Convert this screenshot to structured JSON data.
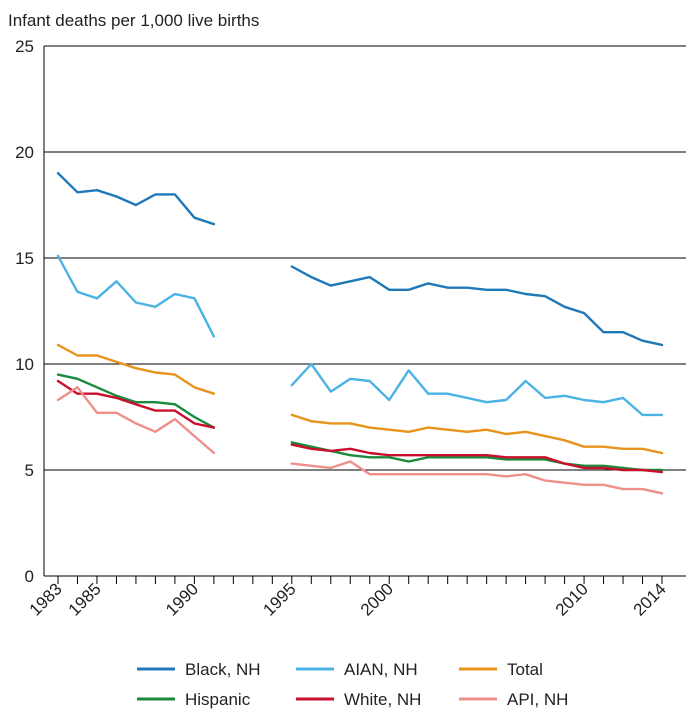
{
  "chart_data": {
    "type": "line",
    "title": "",
    "ylabel": "Infant deaths per 1,000 live births",
    "xlabel": "",
    "ylim": [
      0,
      25
    ],
    "y_ticks": [
      0,
      5,
      10,
      15,
      20,
      25
    ],
    "x_tick_labels": [
      "1983",
      "1985",
      "1990",
      "1995",
      "2000",
      "2010",
      "2014"
    ],
    "x_ticks": [
      1983,
      1985,
      1990,
      1995,
      2000,
      2010,
      2014
    ],
    "xlim": [
      1983,
      2014
    ],
    "grid": "horizontal",
    "legend_position": "bottom",
    "series": [
      {
        "name": "Black, NH",
        "color": "#1f78b8",
        "segments": [
          {
            "x": [
              1983,
              1984,
              1985,
              1986,
              1987,
              1988,
              1989,
              1990,
              1991
            ],
            "y": [
              19.0,
              18.1,
              18.2,
              17.9,
              17.5,
              18.0,
              18.0,
              16.9,
              16.6
            ]
          },
          {
            "x": [
              1995,
              1996,
              1997,
              1998,
              1999,
              2000,
              2001,
              2002,
              2003,
              2004,
              2005,
              2006,
              2007,
              2008,
              2009,
              2010,
              2011,
              2012,
              2013,
              2014
            ],
            "y": [
              14.6,
              14.1,
              13.7,
              13.9,
              14.1,
              13.5,
              13.5,
              13.8,
              13.6,
              13.6,
              13.5,
              13.5,
              13.3,
              13.2,
              12.7,
              12.4,
              11.5,
              11.5,
              11.1,
              10.9
            ]
          }
        ]
      },
      {
        "name": "AIAN, NH",
        "color": "#4ab3e4",
        "segments": [
          {
            "x": [
              1983,
              1984,
              1985,
              1986,
              1987,
              1988,
              1989,
              1990,
              1991
            ],
            "y": [
              15.1,
              13.4,
              13.1,
              13.9,
              12.9,
              12.7,
              13.3,
              13.1,
              11.3
            ]
          },
          {
            "x": [
              1995,
              1996,
              1997,
              1998,
              1999,
              2000,
              2001,
              2002,
              2003,
              2004,
              2005,
              2006,
              2007,
              2008,
              2009,
              2010,
              2011,
              2012,
              2013,
              2014
            ],
            "y": [
              9.0,
              10.0,
              8.7,
              9.3,
              9.2,
              8.3,
              9.7,
              8.6,
              8.6,
              8.4,
              8.2,
              8.3,
              9.2,
              8.4,
              8.5,
              8.3,
              8.2,
              8.4,
              7.6,
              7.6
            ]
          }
        ]
      },
      {
        "name": "Total",
        "color": "#e8931b",
        "segments": [
          {
            "x": [
              1983,
              1984,
              1985,
              1986,
              1987,
              1988,
              1989,
              1990,
              1991
            ],
            "y": [
              10.9,
              10.4,
              10.4,
              10.1,
              9.8,
              9.6,
              9.5,
              8.9,
              8.6
            ]
          },
          {
            "x": [
              1995,
              1996,
              1997,
              1998,
              1999,
              2000,
              2001,
              2002,
              2003,
              2004,
              2005,
              2006,
              2007,
              2008,
              2009,
              2010,
              2011,
              2012,
              2013,
              2014
            ],
            "y": [
              7.6,
              7.3,
              7.2,
              7.2,
              7.0,
              6.9,
              6.8,
              7.0,
              6.9,
              6.8,
              6.9,
              6.7,
              6.8,
              6.6,
              6.4,
              6.1,
              6.1,
              6.0,
              6.0,
              5.8
            ]
          }
        ]
      },
      {
        "name": "Hispanic",
        "color": "#1a8a3c",
        "segments": [
          {
            "x": [
              1983,
              1984,
              1985,
              1986,
              1987,
              1988,
              1989,
              1990,
              1991
            ],
            "y": [
              9.5,
              9.3,
              8.9,
              8.5,
              8.2,
              8.2,
              8.1,
              7.5,
              7.0
            ]
          },
          {
            "x": [
              1995,
              1996,
              1997,
              1998,
              1999,
              2000,
              2001,
              2002,
              2003,
              2004,
              2005,
              2006,
              2007,
              2008,
              2009,
              2010,
              2011,
              2012,
              2013,
              2014
            ],
            "y": [
              6.3,
              6.1,
              5.9,
              5.7,
              5.6,
              5.6,
              5.4,
              5.6,
              5.6,
              5.6,
              5.6,
              5.5,
              5.5,
              5.5,
              5.3,
              5.2,
              5.2,
              5.1,
              5.0,
              5.0
            ]
          }
        ]
      },
      {
        "name": "White, NH",
        "color": "#c8102e",
        "segments": [
          {
            "x": [
              1983,
              1984,
              1985,
              1986,
              1987,
              1988,
              1989,
              1990,
              1991
            ],
            "y": [
              9.2,
              8.6,
              8.6,
              8.4,
              8.1,
              7.8,
              7.8,
              7.2,
              7.0
            ]
          },
          {
            "x": [
              1995,
              1996,
              1997,
              1998,
              1999,
              2000,
              2001,
              2002,
              2003,
              2004,
              2005,
              2006,
              2007,
              2008,
              2009,
              2010,
              2011,
              2012,
              2013,
              2014
            ],
            "y": [
              6.2,
              6.0,
              5.9,
              6.0,
              5.8,
              5.7,
              5.7,
              5.7,
              5.7,
              5.7,
              5.7,
              5.6,
              5.6,
              5.6,
              5.3,
              5.1,
              5.1,
              5.0,
              5.0,
              4.9
            ]
          }
        ]
      },
      {
        "name": "API, NH",
        "color": "#ee8f8a",
        "segments": [
          {
            "x": [
              1983,
              1984,
              1985,
              1986,
              1987,
              1988,
              1989,
              1990,
              1991
            ],
            "y": [
              8.3,
              8.9,
              7.7,
              7.7,
              7.2,
              6.8,
              7.4,
              6.6,
              5.8
            ]
          },
          {
            "x": [
              1995,
              1996,
              1997,
              1998,
              1999,
              2000,
              2001,
              2002,
              2003,
              2004,
              2005,
              2006,
              2007,
              2008,
              2009,
              2010,
              2011,
              2012,
              2013,
              2014
            ],
            "y": [
              5.3,
              5.2,
              5.1,
              5.4,
              4.8,
              4.8,
              4.8,
              4.8,
              4.8,
              4.8,
              4.8,
              4.7,
              4.8,
              4.5,
              4.4,
              4.3,
              4.3,
              4.1,
              4.1,
              3.9
            ]
          }
        ]
      }
    ]
  }
}
